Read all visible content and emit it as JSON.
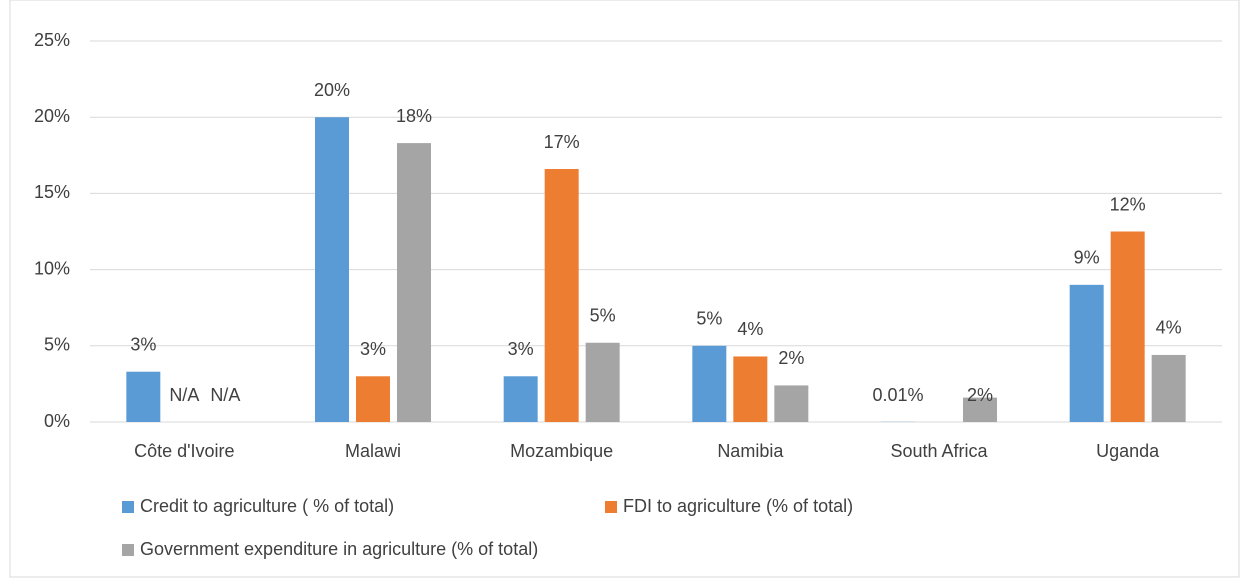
{
  "chart_data": {
    "type": "bar",
    "categories": [
      "Côte d'Ivoire",
      "Malawi",
      "Mozambique",
      "Namibia",
      "South Africa",
      "Uganda"
    ],
    "series": [
      {
        "name": "Credit to agriculture ( % of total)",
        "color": "#5b9bd5",
        "values": [
          3.3,
          20,
          3.0,
          5.0,
          0.01,
          9.0
        ],
        "value_labels": [
          "3%",
          "20%",
          "3%",
          "5%",
          "0.01%",
          "9%"
        ]
      },
      {
        "name": "FDI to agriculture (% of total)",
        "color": "#ed7d31",
        "values": [
          null,
          3.0,
          16.6,
          4.3,
          null,
          12.5
        ],
        "value_labels": [
          "N/A",
          "3%",
          "17%",
          "4%",
          null,
          "12%"
        ]
      },
      {
        "name": "Government expenditure in agriculture (% of total)",
        "color": "#a5a5a5",
        "values": [
          null,
          18.3,
          5.2,
          2.4,
          1.6,
          4.4
        ],
        "value_labels": [
          "N/A",
          "18%",
          "5%",
          "2%",
          "2%",
          "4%"
        ]
      }
    ],
    "ylim": [
      0,
      25
    ],
    "yticks": [
      {
        "value": 0,
        "label": "0%"
      },
      {
        "value": 5,
        "label": "5%"
      },
      {
        "value": 10,
        "label": "10%"
      },
      {
        "value": 15,
        "label": "15%"
      },
      {
        "value": 20,
        "label": "20%"
      },
      {
        "value": 25,
        "label": "25%"
      }
    ],
    "grid": true
  }
}
